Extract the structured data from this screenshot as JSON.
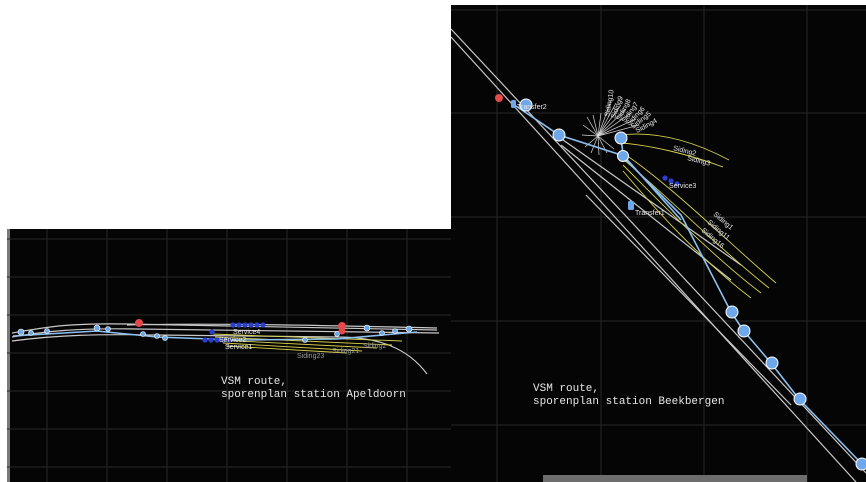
{
  "left_panel": {
    "caption_line1": "VSM route,",
    "caption_line2": "sporenplan station Apeldoorn",
    "labels": {
      "service4": "Service4",
      "service2": "Service2",
      "service1": "Service1",
      "siding23": "Siding23",
      "siding21": "Siding21",
      "siding_right": "Siding2"
    }
  },
  "right_panel": {
    "caption_line1": "VSM route,",
    "caption_line2": "sporenplan station Beekbergen",
    "labels": {
      "transfer2": "Transfer2",
      "transfer1": "Transfer1",
      "service3": "Service3",
      "siding10": "Siding10",
      "siding9": "Siding9",
      "siding8": "Siding8",
      "siding7": "Siding7",
      "siding6": "Siding6",
      "siding5": "Siding5",
      "siding4": "Siding4",
      "siding2": "Siding2",
      "siding3": "Siding3",
      "siding1": "Siding1",
      "siding11": "Siding11",
      "siding16": "Siding16"
    }
  },
  "colors": {
    "background": "#050505",
    "grid": "#2a2a2a",
    "track": "#c8c8c8",
    "siding": "#d8d24a",
    "node": "#6ea8ea",
    "node_dark": "#2a3fd0",
    "signal": "#e44a4a",
    "route": "#8ec0f0"
  }
}
